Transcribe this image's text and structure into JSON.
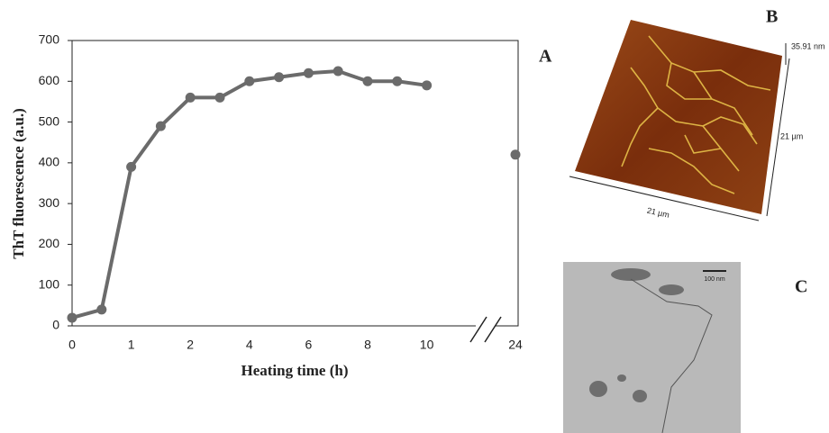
{
  "chart_data": {
    "type": "line",
    "xlabel": "Heating time (h)",
    "ylabel": "ThT fluorescence (a.u.)",
    "categories": [
      "0",
      null,
      "1",
      null,
      "2",
      null,
      "4",
      null,
      "6",
      null,
      "8",
      null,
      "10",
      null,
      null,
      "24"
    ],
    "series": [
      {
        "color": "#6b6b6b",
        "values": [
          20,
          40,
          390,
          490,
          560,
          560,
          600,
          610,
          620,
          625,
          600,
          600,
          590,
          null,
          null,
          420
        ]
      }
    ],
    "ylim": [
      0,
      700
    ],
    "yticks": [
      0,
      100,
      200,
      300,
      400,
      500,
      600,
      700
    ],
    "grid": false
  },
  "figure": {
    "panel_labels": [
      "A",
      "B",
      "C"
    ],
    "afm": {
      "height_label": "35.91 nm",
      "side_label": "21 µm",
      "front_label": "21 µm"
    },
    "tem": {
      "scale_bar_label": "100 nm"
    }
  }
}
